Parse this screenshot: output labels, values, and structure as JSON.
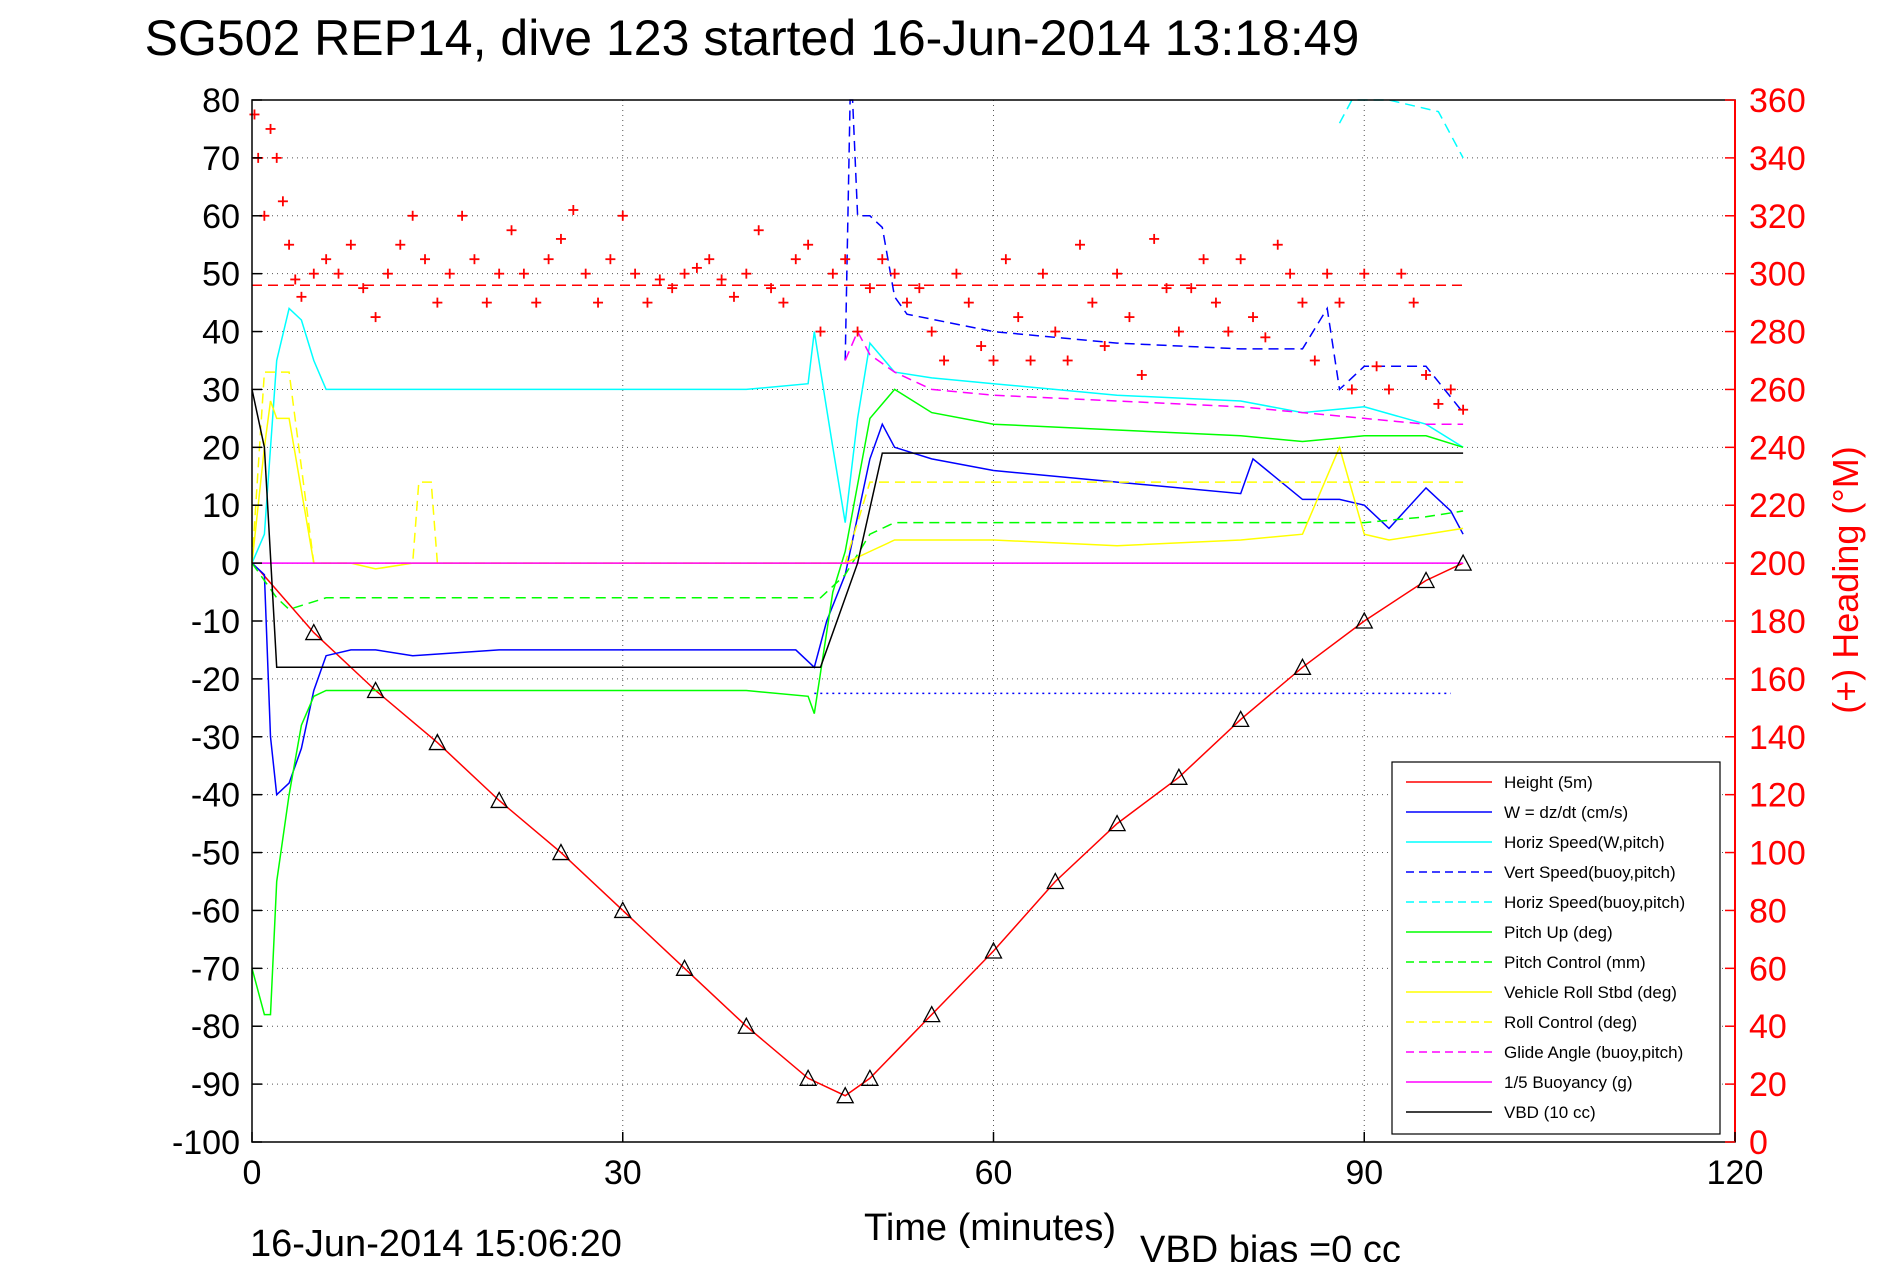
{
  "chart_data": {
    "type": "line",
    "title": "SG502 REP14, dive 123 started 16-Jun-2014 13:18:49",
    "xlabel": "Time (minutes)",
    "ylabel_right": "(+) Heading (°M)",
    "xlim": [
      0,
      120
    ],
    "ylim": [
      -100,
      80
    ],
    "ylim_right": [
      0,
      360
    ],
    "x_ticks": [
      "0",
      "30",
      "60",
      "90",
      "120"
    ],
    "y_ticks": [
      "80",
      "70",
      "60",
      "50",
      "40",
      "30",
      "20",
      "10",
      "0",
      "-10",
      "-20",
      "-30",
      "-40",
      "-50",
      "-60",
      "-70",
      "-80",
      "-90",
      "-100"
    ],
    "y_ticks_right": [
      "360",
      "340",
      "320",
      "300",
      "280",
      "260",
      "240",
      "220",
      "200",
      "180",
      "160",
      "140",
      "120",
      "100",
      "80",
      "60",
      "40",
      "20",
      "0"
    ],
    "grid": true,
    "legend_position": "bottom-right",
    "footer_left": "16-Jun-2014 15:06:20",
    "footer_right": "VBD bias =0 cc",
    "colors": {
      "red": "#ff0000",
      "blue": "#0000ff",
      "cyan": "#00ffff",
      "green": "#00ff00",
      "yellow": "#ffff00",
      "magenta": "#ff00ff",
      "black": "#000000"
    },
    "series": [
      {
        "name": "Height (5m)",
        "color": "#ff0000",
        "dash": false,
        "x": [
          0.5,
          5,
          10,
          15,
          20,
          25,
          30,
          35,
          40,
          45,
          48,
          50,
          55,
          60,
          65,
          70,
          75,
          80,
          85,
          90,
          95,
          98
        ],
        "y": [
          -1,
          -12,
          -22,
          -31,
          -41,
          -50,
          -60,
          -70,
          -80,
          -89,
          -92,
          -89,
          -78,
          -67,
          -55,
          -45,
          -37,
          -27,
          -18,
          -10,
          -3,
          0
        ]
      },
      {
        "name": "W = dz/dt (cm/s)",
        "color": "#0000ff",
        "dash": false,
        "x": [
          0,
          1,
          1.5,
          2,
          3,
          4,
          5,
          6,
          8,
          10,
          13,
          20,
          30,
          40,
          44,
          45.5,
          46.5,
          48,
          50,
          51,
          52,
          55,
          60,
          70,
          80,
          81,
          85,
          88,
          90,
          92,
          95,
          97,
          98
        ],
        "y": [
          0,
          -2,
          -30,
          -40,
          -38,
          -32,
          -22,
          -16,
          -15,
          -15,
          -16,
          -15,
          -15,
          -15,
          -15,
          -18,
          -10,
          -2,
          18,
          24,
          20,
          18,
          16,
          14,
          12,
          18,
          11,
          11,
          10,
          6,
          13,
          9,
          5
        ]
      },
      {
        "name": "Horiz Speed(W,pitch)",
        "color": "#00ffff",
        "dash": false,
        "x": [
          0,
          1,
          2,
          3,
          4,
          5,
          6,
          10,
          20,
          30,
          40,
          45,
          45.5,
          47,
          48,
          49,
          50,
          52,
          55,
          60,
          70,
          80,
          85,
          90,
          95,
          98
        ],
        "y": [
          0,
          5,
          35,
          44,
          42,
          35,
          30,
          30,
          30,
          30,
          30,
          31,
          40,
          20,
          7,
          25,
          38,
          33,
          32,
          31,
          29,
          28,
          26,
          27,
          24,
          20
        ]
      },
      {
        "name": "Vert Speed(buoy,pitch)",
        "color": "#0000ff",
        "dash": true,
        "x": [
          48,
          48.4,
          48.6,
          49,
          50,
          51,
          52,
          53,
          60,
          70,
          80,
          85,
          87,
          88,
          90,
          95,
          98
        ],
        "y": [
          35,
          80,
          80,
          60,
          60,
          58,
          46,
          43,
          40,
          38,
          37,
          37,
          44,
          30,
          34,
          34,
          26
        ]
      },
      {
        "name": "Horiz Speed(buoy,pitch)",
        "color": "#00ffff",
        "dash": true,
        "x": [
          88,
          89,
          90,
          92,
          94,
          96,
          98
        ],
        "y": [
          76,
          80,
          80,
          80,
          79,
          78,
          70
        ]
      },
      {
        "name": "Pitch Up (deg)",
        "color": "#00ff00",
        "dash": false,
        "x": [
          0,
          1,
          1.5,
          2,
          3,
          4,
          5,
          6,
          10,
          20,
          30,
          40,
          45,
          45.5,
          47,
          48,
          50,
          52,
          55,
          60,
          70,
          80,
          85,
          90,
          95,
          98
        ],
        "y": [
          -70,
          -78,
          -78,
          -55,
          -40,
          -28,
          -23,
          -22,
          -22,
          -22,
          -22,
          -22,
          -23,
          -26,
          -5,
          2,
          25,
          30,
          26,
          24,
          23,
          22,
          21,
          22,
          22,
          20
        ]
      },
      {
        "name": "Pitch Control (mm)",
        "color": "#00ff00",
        "dash": true,
        "x": [
          0,
          2,
          3,
          6,
          10,
          20,
          30,
          40,
          45,
          46,
          48,
          50,
          52,
          55,
          60,
          70,
          80,
          90,
          95,
          98
        ],
        "y": [
          0,
          -6,
          -8,
          -6,
          -6,
          -6,
          -6,
          -6,
          -6,
          -6,
          -2,
          5,
          7,
          7,
          7,
          7,
          7,
          7,
          8,
          9
        ]
      },
      {
        "name": "Vehicle Roll Stbd (deg)",
        "color": "#ffff00",
        "dash": false,
        "x": [
          0,
          1,
          1.5,
          2,
          3,
          5,
          8,
          10,
          13,
          16,
          20,
          23,
          28,
          33,
          38,
          42,
          45,
          46,
          48,
          50,
          52,
          55,
          60,
          70,
          80,
          85,
          88,
          90,
          92,
          95,
          98
        ],
        "y": [
          0,
          20,
          28,
          25,
          25,
          0,
          0,
          -1,
          0,
          0,
          0,
          0,
          0,
          0,
          0,
          0,
          0,
          0,
          0,
          2,
          4,
          4,
          4,
          3,
          4,
          5,
          20,
          5,
          4,
          5,
          6
        ]
      },
      {
        "name": "Roll Control (deg)",
        "color": "#ffff00",
        "dash": true,
        "x": [
          0,
          1,
          2,
          3,
          5,
          10,
          13,
          13.5,
          14.5,
          15,
          20,
          30,
          40,
          45,
          46,
          48,
          50,
          52,
          55,
          60,
          70,
          80,
          90,
          98
        ],
        "y": [
          0,
          33,
          33,
          33,
          0,
          0,
          0,
          14,
          14,
          0,
          0,
          0,
          0,
          0,
          0,
          0,
          14,
          14,
          14,
          14,
          14,
          14,
          14,
          14
        ]
      },
      {
        "name": "Glide Angle (buoy,pitch)",
        "color": "#ff00ff",
        "dash": true,
        "x": [
          48,
          49,
          50,
          52,
          55,
          60,
          70,
          80,
          85,
          90,
          95,
          98
        ],
        "y": [
          35,
          40,
          36,
          33,
          30,
          29,
          28,
          27,
          26,
          25,
          24,
          24
        ]
      },
      {
        "name": "1/5 Buoyancy (g)",
        "color": "#ff00ff",
        "dash": false,
        "x": [
          0,
          10,
          20,
          30,
          40,
          46,
          48,
          60,
          70,
          80,
          90,
          98
        ],
        "y": [
          0,
          0,
          0,
          0,
          0,
          0,
          0,
          0,
          0,
          0,
          0,
          0
        ]
      },
      {
        "name": "VBD (10 cc)",
        "color": "#000000",
        "dash": false,
        "x": [
          0,
          1,
          2,
          10,
          20,
          30,
          40,
          45,
          46,
          49,
          51,
          60,
          70,
          80,
          90,
          98
        ],
        "y": [
          30,
          20,
          -18,
          -18,
          -18,
          -18,
          -18,
          -18,
          -18,
          0,
          19,
          19,
          19,
          19,
          19,
          19
        ]
      }
    ],
    "reference_lines": [
      {
        "y": 48,
        "color": "#ff0000",
        "dash": true
      },
      {
        "y": -22.5,
        "color": "#0000ff",
        "dash": "dotted",
        "x_start": 45.5,
        "x_end": 97
      }
    ],
    "heading": {
      "name": "(+) Heading (°M)",
      "color": "#ff0000",
      "x": [
        0.2,
        0.5,
        1,
        1.5,
        2,
        2.5,
        3,
        3.5,
        4,
        5,
        6,
        7,
        8,
        9,
        10,
        11,
        12,
        13,
        14,
        15,
        16,
        17,
        18,
        19,
        20,
        21,
        22,
        23,
        24,
        25,
        26,
        27,
        28,
        29,
        30,
        31,
        32,
        33,
        34,
        35,
        36,
        37,
        38,
        39,
        40,
        41,
        42,
        43,
        44,
        45,
        46,
        47,
        48,
        49,
        50,
        51,
        52,
        53,
        54,
        55,
        56,
        57,
        58,
        59,
        60,
        61,
        62,
        63,
        64,
        65,
        66,
        67,
        68,
        69,
        70,
        71,
        72,
        73,
        74,
        75,
        76,
        77,
        78,
        79,
        80,
        81,
        82,
        83,
        84,
        85,
        86,
        87,
        88,
        89,
        90,
        91,
        92,
        93,
        94,
        95,
        96,
        97,
        98
      ],
      "y": [
        355,
        340,
        320,
        350,
        340,
        325,
        310,
        298,
        292,
        300,
        305,
        300,
        310,
        295,
        285,
        300,
        310,
        320,
        305,
        290,
        300,
        320,
        305,
        290,
        300,
        315,
        300,
        290,
        305,
        312,
        322,
        300,
        290,
        305,
        320,
        300,
        290,
        298,
        295,
        300,
        302,
        305,
        298,
        292,
        300,
        315,
        295,
        290,
        305,
        310,
        280,
        300,
        305,
        280,
        295,
        305,
        300,
        290,
        295,
        280,
        270,
        300,
        290,
        275,
        270,
        305,
        285,
        270,
        300,
        280,
        270,
        310,
        290,
        275,
        300,
        285,
        265,
        312,
        295,
        280,
        295,
        305,
        290,
        280,
        305,
        285,
        278,
        310,
        300,
        290,
        270,
        300,
        290,
        260,
        300,
        268,
        260,
        300,
        290,
        265,
        255,
        260,
        253
      ]
    }
  }
}
